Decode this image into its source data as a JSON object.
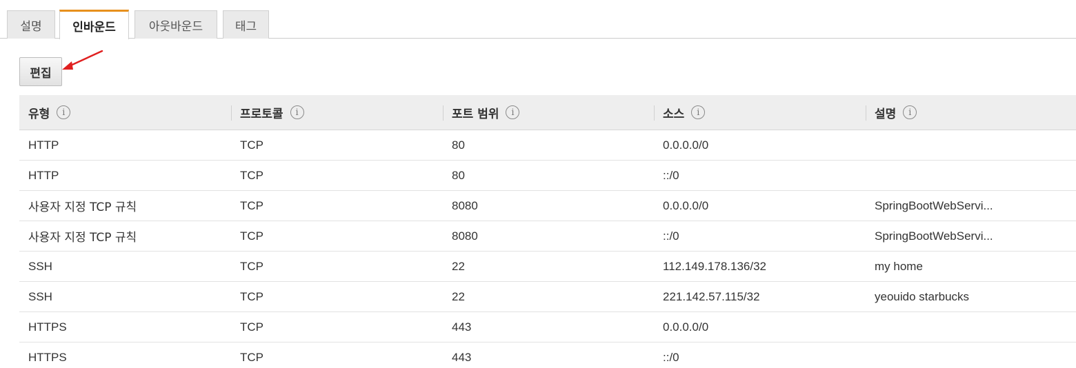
{
  "tabs": [
    {
      "label": "설명"
    },
    {
      "label": "인바운드"
    },
    {
      "label": "아웃바운드"
    },
    {
      "label": "태그"
    }
  ],
  "active_tab": "인바운드",
  "accent_color": "#e7901d",
  "annotation_color": "#e02020",
  "edit_button": {
    "label": "편집"
  },
  "table": {
    "columns": [
      "유형",
      "프로토콜",
      "포트 범위",
      "소스",
      "설명"
    ],
    "info_glyph": "i",
    "rows": [
      {
        "type": "HTTP",
        "protocol": "TCP",
        "port": "80",
        "source": "0.0.0.0/0",
        "description": ""
      },
      {
        "type": "HTTP",
        "protocol": "TCP",
        "port": "80",
        "source": "::/0",
        "description": ""
      },
      {
        "type": "사용자 지정 TCP 규칙",
        "protocol": "TCP",
        "port": "8080",
        "source": "0.0.0.0/0",
        "description": "SpringBootWebServi..."
      },
      {
        "type": "사용자 지정 TCP 규칙",
        "protocol": "TCP",
        "port": "8080",
        "source": "::/0",
        "description": "SpringBootWebServi..."
      },
      {
        "type": "SSH",
        "protocol": "TCP",
        "port": "22",
        "source": "112.149.178.136/32",
        "description": "my home"
      },
      {
        "type": "SSH",
        "protocol": "TCP",
        "port": "22",
        "source": "221.142.57.115/32",
        "description": "yeouido starbucks"
      },
      {
        "type": "HTTPS",
        "protocol": "TCP",
        "port": "443",
        "source": "0.0.0.0/0",
        "description": ""
      },
      {
        "type": "HTTPS",
        "protocol": "TCP",
        "port": "443",
        "source": "::/0",
        "description": ""
      }
    ]
  }
}
